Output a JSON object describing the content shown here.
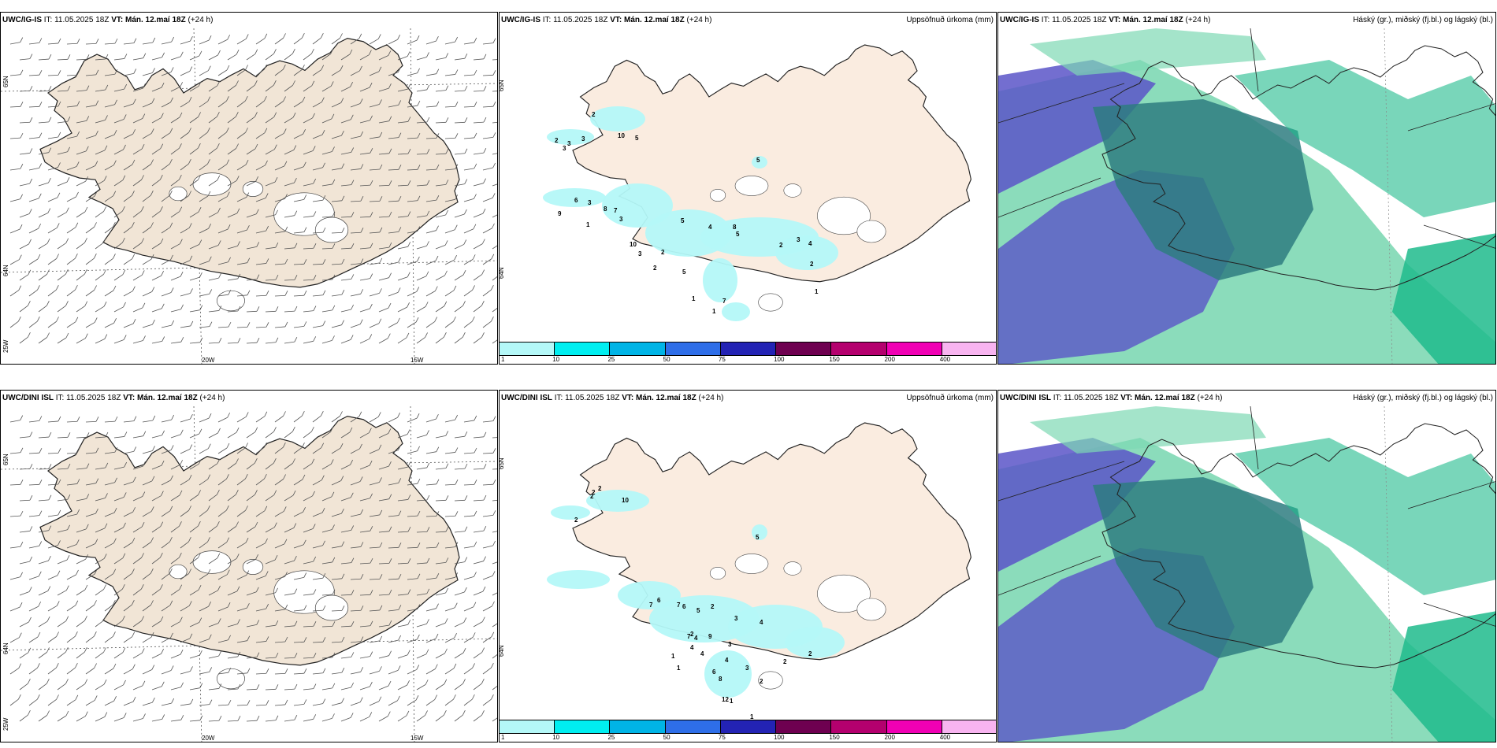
{
  "rows": [
    {
      "model": "UWC/IG-IS",
      "it": "IT: 11.05.2025 18Z",
      "vt": "VT: Mán. 12.maí 18Z",
      "lead": "(+24 h)",
      "precip_labels": [
        "2",
        "10",
        "5",
        "2",
        "3",
        "3",
        "3",
        "6",
        "9",
        "3",
        "8",
        "7",
        "3",
        "1",
        "10",
        "3",
        "2",
        "2",
        "5",
        "5",
        "4",
        "8",
        "5",
        "2",
        "3",
        "4",
        "2",
        "1",
        "1",
        "7",
        "1",
        "5"
      ]
    },
    {
      "model": "UWC/DINI ISL",
      "it": "IT: 11.05.2025 18Z",
      "vt": "VT: Mán. 12.maí 18Z",
      "lead": "(+24 h)",
      "precip_labels": [
        "2",
        "2",
        "2",
        "10",
        "2",
        "7",
        "6",
        "7",
        "6",
        "5",
        "2",
        "3",
        "2",
        "4",
        "4",
        "1",
        "1",
        "7",
        "4",
        "9",
        "3",
        "4",
        "6",
        "3",
        "2",
        "2",
        "4",
        "8",
        "2",
        "1",
        "12",
        "1",
        "5"
      ]
    }
  ],
  "precip_title": "Uppsöfnuð úrkoma (mm)",
  "cloud_title": "Háský (gr.), miðský (fj.bl.) og lágský (bl.)",
  "axis": {
    "lon_labels": [
      "20W",
      "15W"
    ],
    "lat_left": [
      "65N",
      "64N",
      "25W"
    ],
    "lat_right": [
      "65N",
      "64N"
    ]
  },
  "colorbar": {
    "ticks": [
      "1",
      "10",
      "25",
      "50",
      "75",
      "100",
      "150",
      "200",
      "400"
    ],
    "colors": [
      "#b4f8f8",
      "#00eef0",
      "#00b4e6",
      "#2e6ee8",
      "#2323b4",
      "#6e0050",
      "#b4006e",
      "#f000b4",
      "#f8b4f0"
    ]
  },
  "colors": {
    "land": "#f1e5d6",
    "precip_land": "#faece0",
    "cloud_light": "#7ed8b4",
    "cloud_teal": "#1fbb8c",
    "cloud_dark": "#2e7c80",
    "cloud_purple": "#5a55c8"
  }
}
